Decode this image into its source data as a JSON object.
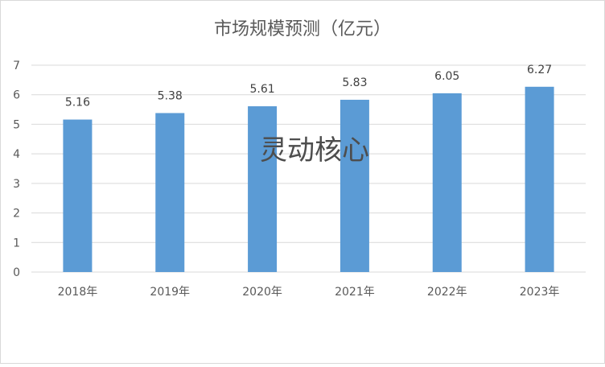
{
  "chart_data": {
    "type": "bar",
    "title": "市场规模预测（亿元）",
    "categories": [
      "2018年",
      "2019年",
      "2020年",
      "2021年",
      "2022年",
      "2023年"
    ],
    "values": [
      5.16,
      5.38,
      5.61,
      5.83,
      6.05,
      6.27
    ],
    "data_labels": [
      "5.16",
      "5.38",
      "5.61",
      "5.83",
      "6.05",
      "6.27"
    ],
    "xlabel": "",
    "ylabel": "",
    "ylim": [
      0,
      7
    ],
    "yticks": [
      0,
      1,
      2,
      3,
      4,
      5,
      6,
      7
    ],
    "grid": true,
    "legend": "none",
    "bar_color": "#5b9bd5",
    "grid_color": "#d9d9d9"
  },
  "watermark": "灵动核心"
}
